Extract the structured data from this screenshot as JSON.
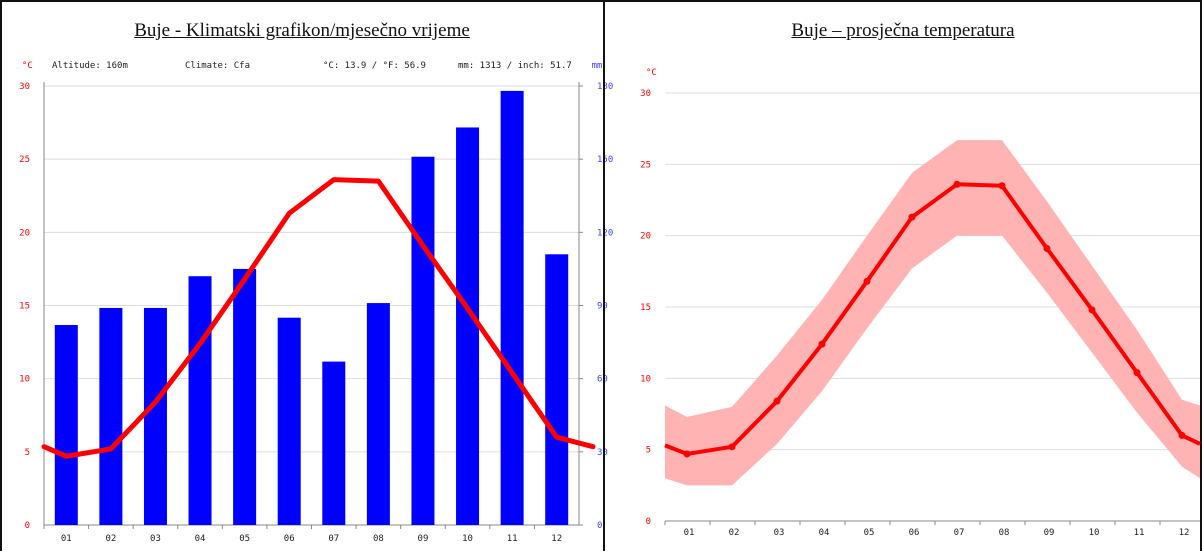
{
  "chart_data": [
    {
      "type": "bar+line",
      "title": "Buje - Klimatski grafikon/mjesečno vrijeme",
      "header": {
        "temp_unit": "°C",
        "precip_unit": "mm",
        "altitude": "Altitude: 160m",
        "climate": "Climate: Cfa",
        "temp_summary": "°C: 13.9 / °F: 56.9",
        "precip_summary": "mm: 1313 / inch: 51.7"
      },
      "categories": [
        "01",
        "02",
        "03",
        "04",
        "05",
        "06",
        "07",
        "08",
        "09",
        "10",
        "11",
        "12"
      ],
      "precipitation_mm": [
        82,
        89,
        89,
        102,
        105,
        85,
        67,
        91,
        151,
        163,
        178,
        111
      ],
      "temperature_c": [
        4.7,
        5.2,
        8.4,
        12.4,
        16.8,
        21.3,
        23.6,
        23.5,
        19.1,
        14.8,
        10.4,
        6.0
      ],
      "temp_ylim": [
        0,
        30
      ],
      "temp_ticks": [
        "0",
        "5",
        "10",
        "15",
        "20",
        "25",
        "30"
      ],
      "precip_ylim": [
        0,
        180
      ],
      "precip_ticks": [
        "0",
        "30",
        "60",
        "90",
        "120",
        "150",
        "180"
      ],
      "colors": {
        "bars": "#0000ff",
        "line": "#ff0000",
        "temp_axis": "#ff0000",
        "precip_axis": "#4040ff",
        "grid": "#dddddd"
      },
      "grid": true
    },
    {
      "type": "line+band",
      "title": "Buje – prosječna temperatura",
      "temp_unit": "°C",
      "categories": [
        "01",
        "02",
        "03",
        "04",
        "05",
        "06",
        "07",
        "08",
        "09",
        "10",
        "11",
        "12"
      ],
      "temperature_c": [
        4.7,
        5.2,
        8.4,
        12.4,
        16.8,
        21.3,
        23.6,
        23.5,
        19.1,
        14.8,
        10.4,
        6.0
      ],
      "temp_min_c": [
        2.5,
        2.5,
        5.4,
        9.1,
        13.5,
        17.7,
        20.0,
        20.0,
        16.0,
        11.8,
        7.6,
        3.8
      ],
      "temp_max_c": [
        7.3,
        8.0,
        11.6,
        15.5,
        20.0,
        24.4,
        26.7,
        26.7,
        22.4,
        17.9,
        13.4,
        8.5
      ],
      "ylim": [
        0,
        30
      ],
      "ticks": [
        "0",
        "5",
        "10",
        "15",
        "20",
        "25",
        "30"
      ],
      "colors": {
        "line": "#ff0000",
        "band": "#ffb3b3",
        "axis": "#ff0000",
        "grid": "#dddddd"
      },
      "grid": true
    }
  ]
}
